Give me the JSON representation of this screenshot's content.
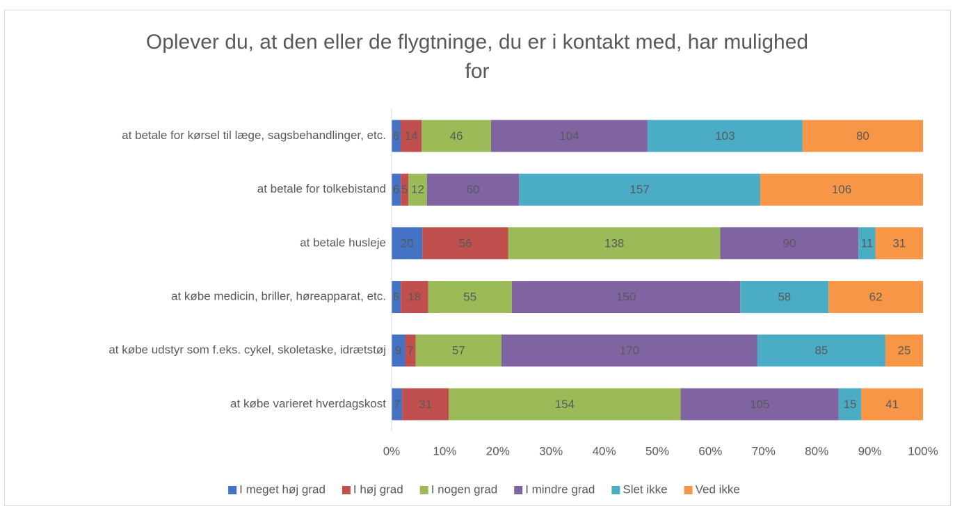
{
  "chart_data": {
    "type": "bar",
    "orientation": "horizontal",
    "stacking": "percent",
    "title": "Oplever du, at den eller de flygtninge, du er i kontakt med, har mulighed for",
    "categories": [
      "at betale for kørsel til læge, sagsbehandlinger, etc.",
      "at betale for tolkebistand",
      "at betale husleje",
      "at købe medicin, briller, høreapparat, etc.",
      "at købe udstyr som f.eks. cykel, skoletaske, idrætstøj",
      "at købe varieret hverdagskost"
    ],
    "series": [
      {
        "name": "I meget høj grad",
        "color": "#4472c4",
        "values": [
          6,
          6,
          20,
          6,
          9,
          7
        ]
      },
      {
        "name": "I høj grad",
        "color": "#c0504d",
        "values": [
          14,
          5,
          56,
          18,
          7,
          31
        ]
      },
      {
        "name": "I nogen grad",
        "color": "#9bbb59",
        "values": [
          46,
          12,
          138,
          55,
          57,
          154
        ]
      },
      {
        "name": "I mindre grad",
        "color": "#8064a2",
        "values": [
          104,
          60,
          90,
          150,
          170,
          105
        ]
      },
      {
        "name": "Slet ikke",
        "color": "#4bacc6",
        "values": [
          103,
          157,
          11,
          58,
          85,
          15
        ]
      },
      {
        "name": "Ved ikke",
        "color": "#f79646",
        "values": [
          80,
          106,
          31,
          62,
          25,
          41
        ]
      }
    ],
    "xlim": [
      0,
      100
    ],
    "xticks": [
      {
        "value": 0,
        "label": "0%"
      },
      {
        "value": 10,
        "label": "10%"
      },
      {
        "value": 20,
        "label": "20%"
      },
      {
        "value": 30,
        "label": "30%"
      },
      {
        "value": 40,
        "label": "40%"
      },
      {
        "value": 50,
        "label": "50%"
      },
      {
        "value": 60,
        "label": "60%"
      },
      {
        "value": 70,
        "label": "70%"
      },
      {
        "value": 80,
        "label": "80%"
      },
      {
        "value": 90,
        "label": "90%"
      },
      {
        "value": 100,
        "label": "100%"
      }
    ],
    "grid": false,
    "legend": "bottom"
  }
}
